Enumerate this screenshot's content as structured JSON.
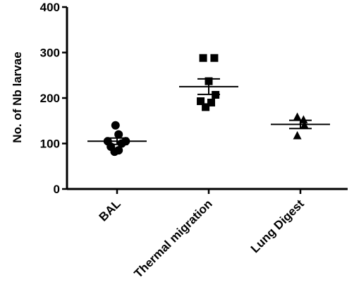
{
  "chart_data": {
    "type": "scatter",
    "title": "",
    "xlabel": "",
    "ylabel": "No. of Nb larvae",
    "ylim": [
      0,
      400
    ],
    "yticks": [
      0,
      100,
      200,
      300,
      400
    ],
    "grid": false,
    "categories": [
      "BAL",
      "Thermal  migration",
      "Lung Digest"
    ],
    "series": [
      {
        "marker": "circle",
        "points": [
          {
            "jitter": -0.3,
            "y": 105
          },
          {
            "jitter": -0.2,
            "y": 93
          },
          {
            "jitter": -0.08,
            "y": 82
          },
          {
            "jitter": 0.05,
            "y": 85
          },
          {
            "jitter": 0.15,
            "y": 100
          },
          {
            "jitter": 0.28,
            "y": 105
          },
          {
            "jitter": -0.05,
            "y": 140
          },
          {
            "jitter": 0.05,
            "y": 120
          }
        ],
        "mean": 105,
        "sem": 7
      },
      {
        "marker": "square",
        "points": [
          {
            "jitter": -0.18,
            "y": 288
          },
          {
            "jitter": 0.18,
            "y": 288
          },
          {
            "jitter": 0.0,
            "y": 237
          },
          {
            "jitter": 0.22,
            "y": 207
          },
          {
            "jitter": -0.26,
            "y": 193
          },
          {
            "jitter": 0.08,
            "y": 190
          },
          {
            "jitter": -0.1,
            "y": 180
          }
        ],
        "mean": 225,
        "sem": 17
      },
      {
        "marker": "triangle",
        "points": [
          {
            "jitter": -0.1,
            "y": 158
          },
          {
            "jitter": 0.1,
            "y": 152
          },
          {
            "jitter": 0.13,
            "y": 140
          },
          {
            "jitter": -0.1,
            "y": 117
          }
        ],
        "mean": 142,
        "sem": 9
      }
    ]
  }
}
